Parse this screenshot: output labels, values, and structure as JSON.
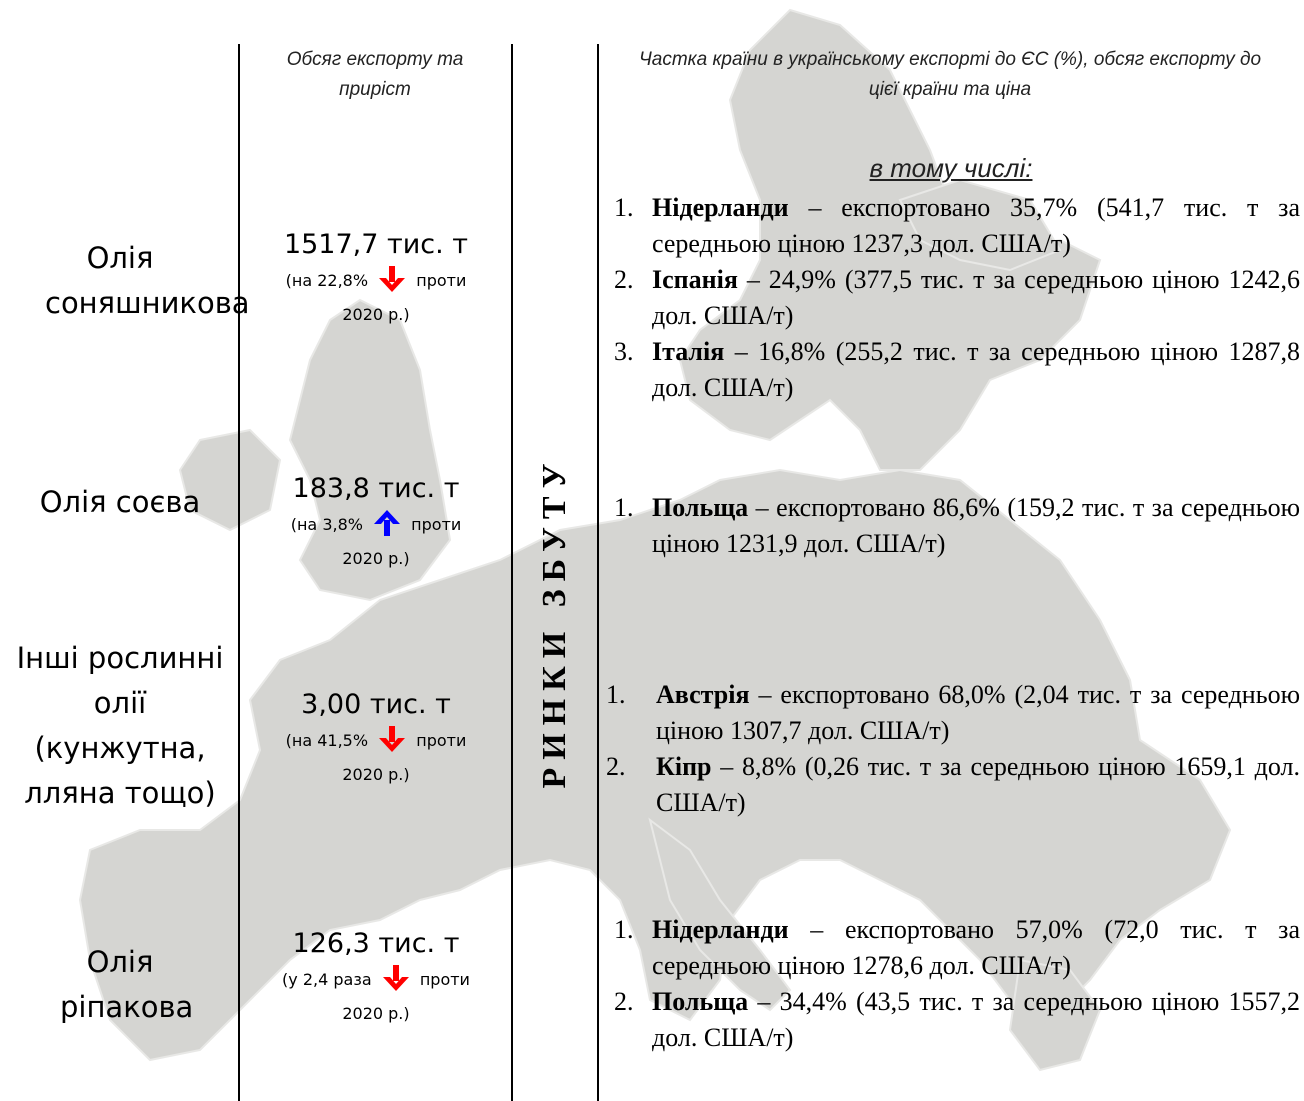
{
  "headers": {
    "volume": "Обсяг експорту та приріст",
    "markets": "Частка країни в українському експорті до ЄС (%), обсяг експорту до цієї країни та ціна"
  },
  "vertical_label": "РИНКИ ЗБУТУ",
  "subheading": "в тому числі:",
  "colors": {
    "down_arrow": "#ff0000",
    "up_arrow": "#0000ff",
    "map": "#d5d5d2"
  },
  "products": [
    {
      "name": "Олія соняшникова",
      "volume": "1517,7 тис. т",
      "change_before": "(на 22,8%",
      "direction": "down",
      "change_after": "проти",
      "year": "2020 р.)",
      "markets": [
        {
          "num": "1.",
          "country": "Нідерланди",
          "text": " – експортовано 35,7% (541,7 тис. т за середньою ціною 1237,3 дол. США/т)"
        },
        {
          "num": "2.",
          "country": "Іспанія",
          "text": " – 24,9% (377,5 тис. т за середньою ціною 1242,6 дол. США/т)"
        },
        {
          "num": "3.",
          "country": "Італія",
          "text": " – 16,8% (255,2 тис. т за середньою ціною 1287,8 дол. США/т)"
        }
      ]
    },
    {
      "name": "Олія соєва",
      "volume": "183,8 тис. т",
      "change_before": "(на 3,8%",
      "direction": "up",
      "change_after": "проти",
      "year": "2020 р.)",
      "markets": [
        {
          "num": "1.",
          "country": "Польща",
          "text": " – експортовано 86,6% (159,2 тис. т за середньою ціною 1231,9 дол. США/т)"
        }
      ]
    },
    {
      "name": "Інші рослинні олії (кунжутна, лляна тощо)",
      "volume": "3,00 тис. т",
      "change_before": "(на 41,5%",
      "direction": "down",
      "change_after": "проти",
      "year": "2020 р.)",
      "markets": [
        {
          "num": "1.",
          "country": "Австрія",
          "text": " – експортовано 68,0% (2,04 тис. т за середньою ціною 1307,7 дол. США/т)"
        },
        {
          "num": "2.",
          "country": "Кіпр",
          "text": " – 8,8% (0,26 тис. т за середньою ціною 1659,1 дол. США/т)"
        }
      ]
    },
    {
      "name": "Олія ріпакова",
      "volume": "126,3 тис. т",
      "change_before": "(у 2,4 раза",
      "direction": "down",
      "change_after": "проти",
      "year": "2020 р.)",
      "markets": [
        {
          "num": "1.",
          "country": "Нідерланди",
          "text": " – експортовано 57,0% (72,0 тис. т за середньою ціною 1278,6 дол. США/т)"
        },
        {
          "num": "2.",
          "country": "Польща",
          "text": " – 34,4% (43,5 тис. т за середньою ціною 1557,2 дол. США/т)"
        }
      ]
    }
  ]
}
